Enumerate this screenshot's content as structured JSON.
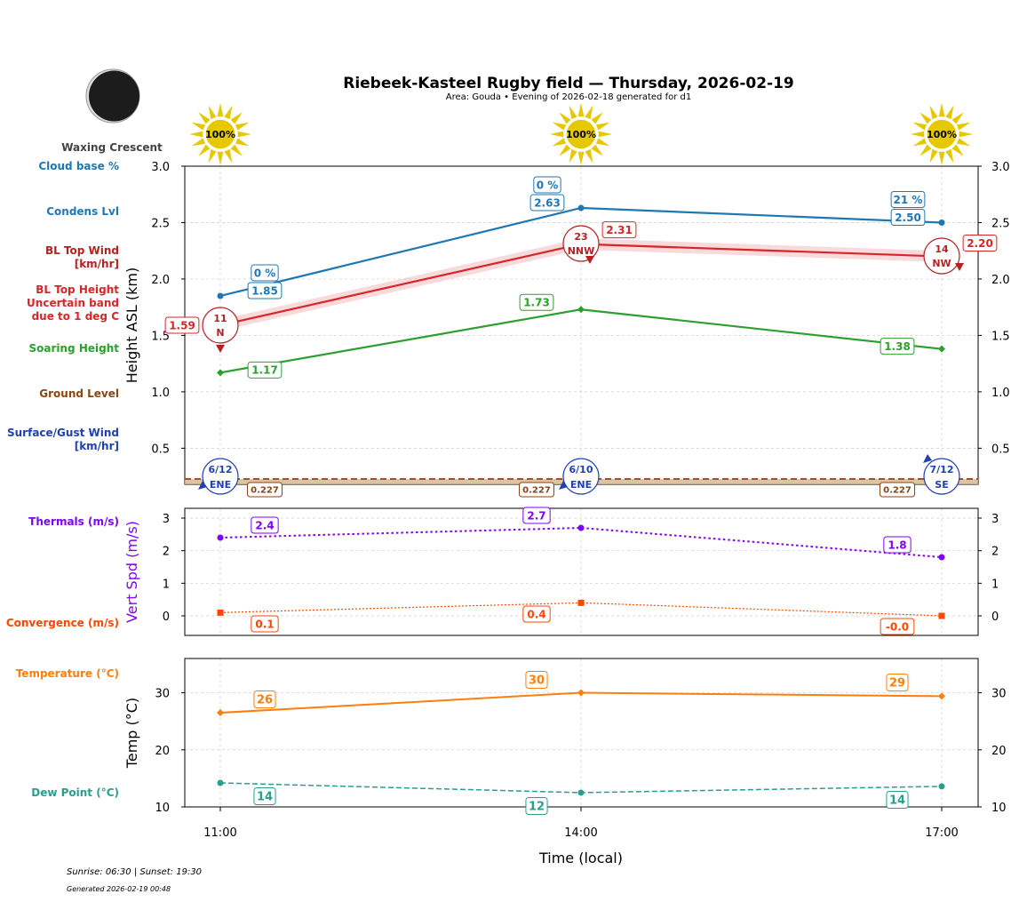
{
  "title": "Riebeek-Kasteel Rugby field — Thursday, 2026-02-19",
  "subtitle": "Area: Gouda • Evening of 2026-02-18 generated for d1",
  "moon_phase": "Waxing Crescent",
  "footer": {
    "sun": "Sunrise: 06:30 | Sunset: 19:30",
    "generated": "Generated 2026-02-19 00:48"
  },
  "xlabel": "Time (local)",
  "times": [
    "11:00",
    "14:00",
    "17:00"
  ],
  "sun_percent": [
    "100%",
    "100%",
    "100%"
  ],
  "left_labels": {
    "cloud_base": "Cloud base %",
    "condens": "Condens Lvl",
    "bl_wind": [
      "BL Top Wind",
      "[km/hr]"
    ],
    "bl_height": [
      "BL Top Height",
      "Uncertain band",
      "due to 1 deg C"
    ],
    "soaring": "Soaring Height",
    "ground": "Ground Level",
    "surface_wind": [
      "Surface/Gust Wind",
      "[km/hr]"
    ],
    "thermals": "Thermals (m/s)",
    "convergence": "Convergence (m/s)",
    "temperature": "Temperature (°C)",
    "dew_point": "Dew Point (°C)"
  },
  "colors": {
    "condens": "#1f77b4",
    "bl_top": "#d62728",
    "bl_wind": "#b22222",
    "soaring": "#2ca02c",
    "ground": "#8b4513",
    "surface_wind": "#2040b0",
    "thermals": "#7f00ff",
    "convergence": "#ff4500",
    "temperature": "#ff7f0e",
    "dew_point": "#2a9d8f"
  },
  "chart_data": [
    {
      "type": "line",
      "ylabel": "Height ASL (km)",
      "ylim": [
        0.18,
        3.0
      ],
      "yticks": [
        "0.5",
        "1.0",
        "1.5",
        "2.0",
        "2.5",
        "3.0"
      ],
      "grid": true,
      "x": [
        "11:00",
        "14:00",
        "17:00"
      ],
      "series": [
        {
          "key": "condens",
          "values": [
            1.85,
            2.63,
            2.5
          ],
          "labels": [
            "1.85",
            "2.63",
            "2.50"
          ],
          "cloud_base_pct": [
            "0 %",
            "0 %",
            "21 %"
          ]
        },
        {
          "key": "bl_top",
          "values": [
            1.59,
            2.31,
            2.2
          ],
          "labels": [
            "1.59",
            "2.31",
            "2.20"
          ],
          "uncertainty": 0.05
        },
        {
          "key": "soaring",
          "values": [
            1.17,
            1.73,
            1.38
          ],
          "labels": [
            "1.17",
            "1.73",
            "1.38"
          ]
        },
        {
          "key": "ground",
          "values": [
            0.227,
            0.227,
            0.227
          ],
          "labels": [
            "0.227",
            "0.227",
            "0.227"
          ]
        }
      ],
      "bl_wind": [
        {
          "speed": "11",
          "dir": "N"
        },
        {
          "speed": "23",
          "dir": "NNW"
        },
        {
          "speed": "14",
          "dir": "NW"
        }
      ],
      "surface_wind": [
        {
          "speed": "6/12",
          "dir": "ENE"
        },
        {
          "speed": "6/10",
          "dir": "ENE"
        },
        {
          "speed": "7/12",
          "dir": "SE"
        }
      ]
    },
    {
      "type": "line",
      "ylabel": "Vert Spd (m/s)",
      "ylim": [
        -0.6,
        3.3
      ],
      "yticks": [
        "0",
        "1",
        "2",
        "3"
      ],
      "grid": true,
      "x": [
        "11:00",
        "14:00",
        "17:00"
      ],
      "series": [
        {
          "key": "thermals",
          "values": [
            2.4,
            2.7,
            1.8
          ],
          "labels": [
            "2.4",
            "2.7",
            "1.8"
          ]
        },
        {
          "key": "convergence",
          "values": [
            0.1,
            0.4,
            0.0
          ],
          "labels": [
            "0.1",
            "0.4",
            "-0.0"
          ]
        }
      ]
    },
    {
      "type": "line",
      "ylabel": "Temp (°C)",
      "ylim": [
        10,
        36
      ],
      "yticks": [
        "10",
        "20",
        "30"
      ],
      "grid": true,
      "x": [
        "11:00",
        "14:00",
        "17:00"
      ],
      "series": [
        {
          "key": "temperature",
          "values": [
            26.5,
            30.0,
            29.4
          ],
          "labels": [
            "26",
            "30",
            "29"
          ]
        },
        {
          "key": "dew_point",
          "values": [
            14.2,
            12.5,
            13.6
          ],
          "labels": [
            "14",
            "12",
            "14"
          ]
        }
      ]
    }
  ]
}
